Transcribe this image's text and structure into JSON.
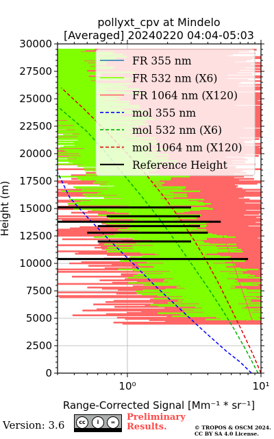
{
  "chart_data": {
    "type": "line",
    "title": "pollyxt_cpv at Mindelo",
    "subtitle": "[Averaged] 20240220 04:04-05:03",
    "xlabel": "Range-Corrected Signal [Mm⁻¹ * sr⁻¹]",
    "ylabel": "Height (m)",
    "xscale": "log",
    "xlim": [
      0.3,
      10
    ],
    "ylim": [
      0,
      30000
    ],
    "xticks": [
      {
        "value": 1,
        "label": "10⁰"
      },
      {
        "value": 10,
        "label": "10¹"
      }
    ],
    "yticks": [
      0,
      2500,
      5000,
      7500,
      10000,
      12500,
      15000,
      17500,
      20000,
      22500,
      25000,
      27500,
      30000
    ],
    "yticklabels": [
      "0",
      "2500",
      "5000",
      "7500",
      "10000",
      "12500",
      "15000",
      "17500",
      "20000",
      "22500",
      "25000",
      "27500",
      "30000"
    ],
    "grid": true,
    "legend_position": "top-right",
    "series": [
      {
        "name": "FR 355 nm",
        "color": "#1f77b4",
        "style": "solid",
        "x": [],
        "y": []
      },
      {
        "name": "FR 532 nm (X6)",
        "color": "#80ff00",
        "style": "solid",
        "y": [
          4800,
          5200,
          6000,
          7000,
          8000,
          9000,
          10000,
          11000,
          12000,
          13000,
          14000,
          15000,
          16000,
          17000,
          18000,
          19000,
          20000,
          22000,
          24000,
          26000,
          28000,
          29500
        ],
        "x": [
          8.0,
          6.5,
          5.2,
          4.6,
          4.0,
          3.5,
          3.0,
          2.6,
          2.3,
          2.0,
          1.7,
          1.5,
          1.3,
          1.15,
          1.0,
          0.9,
          0.8,
          0.6,
          0.5,
          0.42,
          0.36,
          0.33
        ]
      },
      {
        "name": "FR 1064 nm (X120)",
        "color": "#ff6666",
        "style": "solid",
        "y": [
          4500,
          5000,
          6000,
          7000,
          8000,
          9000,
          10000,
          11000,
          12000,
          13000,
          14000,
          15000,
          16000,
          17000,
          18000,
          19000,
          20000,
          22000,
          24000,
          26000,
          28000,
          29500
        ],
        "x": [
          9.0,
          8.5,
          8.0,
          7.5,
          7.0,
          6.6,
          6.2,
          5.8,
          5.4,
          5.0,
          4.7,
          4.4,
          4.1,
          3.9,
          3.7,
          3.5,
          3.3,
          3.0,
          2.8,
          2.6,
          2.4,
          2.3
        ]
      },
      {
        "name": "mol 355 nm",
        "color": "#0000ff",
        "style": "dashed",
        "y": [
          0,
          1000,
          2000,
          4000,
          6000,
          8000,
          10000,
          12000,
          14000,
          16000,
          18300
        ],
        "x": [
          8.5,
          7.0,
          5.5,
          3.6,
          2.4,
          1.6,
          1.1,
          0.75,
          0.52,
          0.37,
          0.3
        ]
      },
      {
        "name": "mol 532 nm (X6)",
        "color": "#00b000",
        "style": "dashed",
        "y": [
          0,
          2000,
          4000,
          6000,
          8000,
          10000,
          12000,
          14000,
          16000,
          18000,
          20000,
          22000,
          24300
        ],
        "x": [
          9.5,
          7.8,
          6.3,
          5.0,
          3.9,
          3.0,
          2.3,
          1.75,
          1.3,
          0.95,
          0.7,
          0.5,
          0.3
        ]
      },
      {
        "name": "mol 1064 nm (X120)",
        "color": "#dd0000",
        "style": "dashed",
        "y": [
          0,
          2000,
          4000,
          6000,
          8000,
          10000,
          12000,
          14000,
          16000,
          18000,
          20000,
          22000,
          24000,
          26000
        ],
        "x": [
          10.0,
          8.5,
          7.1,
          5.9,
          4.9,
          4.0,
          3.2,
          2.5,
          1.9,
          1.4,
          1.0,
          0.7,
          0.48,
          0.32
        ]
      },
      {
        "name": "Reference Height",
        "color": "#000000",
        "style": "solid",
        "x": [],
        "y": []
      }
    ],
    "reference_heights": [
      {
        "y": 10400,
        "x_from": 0.3,
        "x_to": 8.0
      },
      {
        "y": 12000,
        "x_from": 0.6,
        "x_to": 3.0
      },
      {
        "y": 12800,
        "x_from": 0.5,
        "x_to": 4.0
      },
      {
        "y": 13400,
        "x_from": 0.6,
        "x_to": 3.5
      },
      {
        "y": 13800,
        "x_from": 0.3,
        "x_to": 5.0
      },
      {
        "y": 14300,
        "x_from": 0.7,
        "x_to": 3.5
      },
      {
        "y": 15100,
        "x_from": 0.3,
        "x_to": 3.0
      }
    ]
  },
  "footer": {
    "version": "Version: 3.6",
    "license_badge": [
      "cc",
      "i",
      "=",
      "BY",
      "SA"
    ],
    "preliminary_line1": "Preliminary",
    "preliminary_line2": "Results.",
    "copyright_line1": "© TROPOS & OSCM 2024.",
    "copyright_line2": "CC BY SA 4.0 License."
  }
}
